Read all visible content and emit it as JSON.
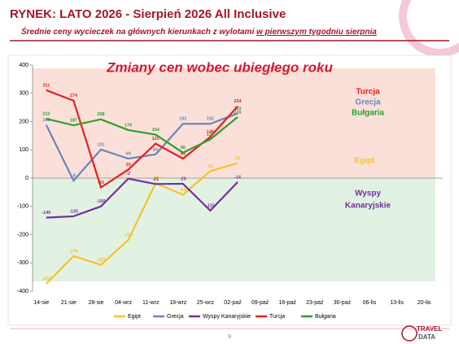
{
  "slide": {
    "title": "RYNEK: LATO 2026 - Sierpień 2026 All Inclusive",
    "subtitle": [
      "Średnie ceny wycieczek na głównych kierunkach z wylotami",
      "w pierwszym tygodniu sierpnia"
    ],
    "page_number": "9",
    "logo": [
      "TRAVEL",
      "DATA"
    ]
  },
  "chart_data": {
    "type": "line",
    "title": "Zmiany cen wobec ubiegłego roku",
    "categories": [
      "14-sie",
      "21-sie",
      "28-sie",
      "04-wrz",
      "11-wrz",
      "18-wrz",
      "25-wrz",
      "02-paź",
      "09-paź",
      "16-paź",
      "23-paź",
      "30-paź",
      "06-lis",
      "13-lis",
      "20-lis"
    ],
    "series": [
      {
        "name": "Egipt",
        "color": "#f5c12e",
        "values": [
          -374,
          -276,
          -307,
          -219,
          -18,
          -59,
          25,
          53,
          null,
          null,
          null,
          null,
          null,
          null,
          null
        ]
      },
      {
        "name": "Grecja",
        "color": "#6b86b5",
        "values": [
          188,
          -9,
          101,
          69,
          84,
          192,
          192,
          229,
          null,
          null,
          null,
          null,
          null,
          null,
          null
        ]
      },
      {
        "name": "Wyspy Kanaryjskie",
        "color": "#7030a0",
        "values": [
          -140,
          -135,
          -100,
          -2,
          -21,
          -20,
          -115,
          -14,
          null,
          null,
          null,
          null,
          null,
          null,
          null
        ]
      },
      {
        "name": "Turcja",
        "color": "#e81e1e",
        "values": [
          311,
          274,
          -33,
          30,
          122,
          69,
          146,
          254,
          null,
          null,
          null,
          null,
          null,
          null,
          null
        ]
      },
      {
        "name": "Bułgaria",
        "color": "#2ca02c",
        "values": [
          210,
          187,
          208,
          170,
          154,
          90,
          137,
          216,
          null,
          null,
          null,
          null,
          null,
          null,
          null
        ]
      }
    ],
    "annotations": [
      {
        "lines": [
          "Turcja"
        ],
        "color": "#e81e1e"
      },
      {
        "lines": [
          "Grecja"
        ],
        "color": "#6b86b5"
      },
      {
        "lines": [
          "Bułgaria"
        ],
        "color": "#2ca02c"
      },
      {
        "lines": [
          "Egipt"
        ],
        "color": "#f5c12e"
      },
      {
        "lines": [
          "Wyspy",
          "Kanaryjskie"
        ],
        "color": "#7030a0"
      }
    ],
    "ylim": [
      -400,
      400
    ],
    "yticks": [
      -400,
      -300,
      -200,
      -100,
      0,
      100,
      200,
      300,
      400
    ],
    "grid": false,
    "legend": "bottom"
  }
}
